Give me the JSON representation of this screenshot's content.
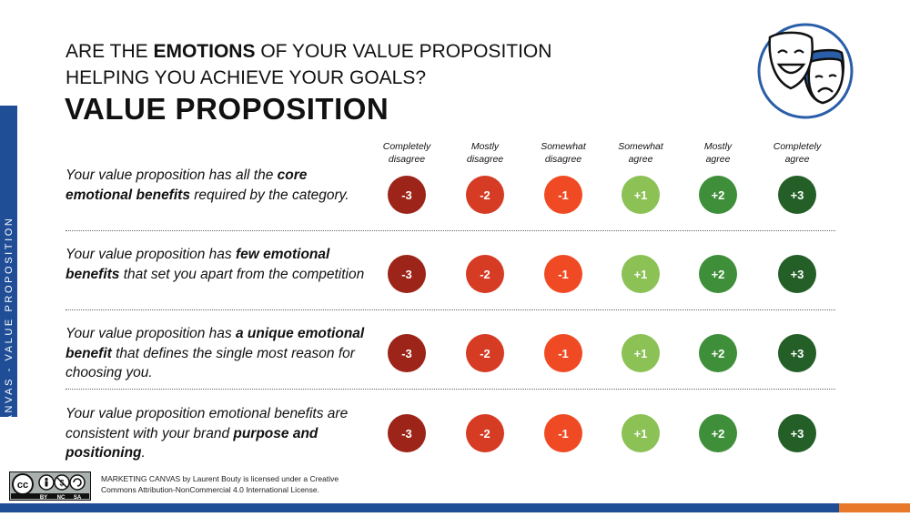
{
  "sidebar": {
    "label": "MARKETING CANVAS - VALUE PROPOSITION"
  },
  "header": {
    "line1_prefix": "ARE THE ",
    "line1_emphasis": "EMOTIONS",
    "line1_suffix": " OF YOUR VALUE PROPOSITION",
    "line2": "HELPING YOU ACHIEVE YOUR GOALS?",
    "title": "VALUE PROPOSITION"
  },
  "scale": {
    "columns": [
      {
        "line1": "Completely",
        "line2": "disagree",
        "value": "-3",
        "color": "#9c2418"
      },
      {
        "line1": "Mostly",
        "line2": "disagree",
        "value": "-2",
        "color": "#d63b24"
      },
      {
        "line1": "Somewhat",
        "line2": "disagree",
        "value": "-1",
        "color": "#ef4a23"
      },
      {
        "line1": "Somewhat",
        "line2": "agree",
        "value": "+1",
        "color": "#8bc155"
      },
      {
        "line1": "Mostly",
        "line2": "agree",
        "value": "+2",
        "color": "#3f8f3a"
      },
      {
        "line1": "Completely",
        "line2": "agree",
        "value": "+3",
        "color": "#235f26"
      }
    ]
  },
  "statements": [
    {
      "parts": [
        {
          "text": "Your value proposition has all the ",
          "bold": false
        },
        {
          "text": "core emotional benefits",
          "bold": true
        },
        {
          "text": " required by the category.",
          "bold": false
        }
      ]
    },
    {
      "parts": [
        {
          "text": "Your value proposition has ",
          "bold": false
        },
        {
          "text": "few emotional benefits",
          "bold": true
        },
        {
          "text": " that set you apart from the competition",
          "bold": false
        }
      ]
    },
    {
      "parts": [
        {
          "text": "Your value proposition has ",
          "bold": false
        },
        {
          "text": "a unique emotional benefit",
          "bold": true
        },
        {
          "text": " that defines the single most reason for choosing you.",
          "bold": false
        }
      ]
    },
    {
      "parts": [
        {
          "text": "Your value proposition emotional benefits are consistent with your brand ",
          "bold": false
        },
        {
          "text": "purpose and positioning",
          "bold": true
        },
        {
          "text": ".",
          "bold": false
        }
      ]
    }
  ],
  "footer": {
    "cc_badge": {
      "label": "cc",
      "tags": [
        "BY",
        "NC",
        "SA"
      ]
    },
    "license_line1": "MARKETING CANVAS by Laurent Bouty is licensed under a Creative",
    "license_line2": "Commons Attribution-NonCommercial 4.0 International License."
  },
  "colors": {
    "brand_blue": "#1f4e97",
    "accent_orange": "#e8782a",
    "logo_blue": "#2a5ea8"
  },
  "icons": {
    "logo": "theater-masks-icon",
    "license": "creative-commons-icon"
  }
}
